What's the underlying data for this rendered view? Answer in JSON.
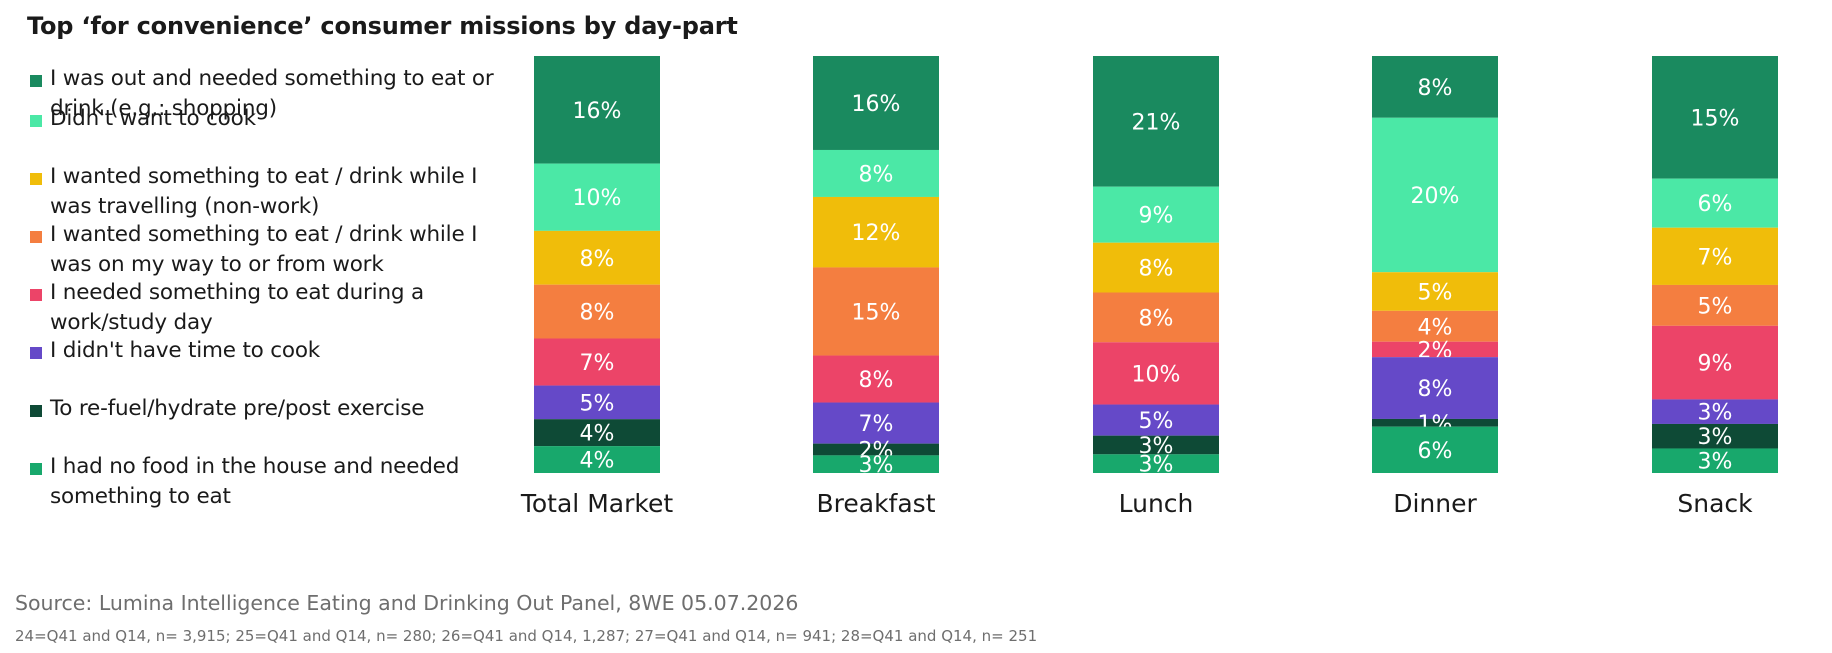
{
  "title": "Top ‘for convenience’ consumer missions by day-part",
  "source": "Source: Lumina Intelligence Eating and Drinking Out Panel, 8WE 05.07.2026",
  "note": "24=Q41 and Q14, n= 3,915; 25=Q41 and Q14, n= 280; 26=Q41 and Q14, 1,287; 27=Q41 and Q14, n= 941; 28=Q41 and Q14, n= 251",
  "legend": [
    {
      "label": "I was out and needed something to eat or drink (e.g.: shopping)",
      "color": "#1a8a5f"
    },
    {
      "label": "Didn't want to cook",
      "color": "#4be8a6"
    },
    {
      "label": "I wanted something to eat / drink while I was travelling (non-work)",
      "color": "#f0bd0a"
    },
    {
      "label": "I wanted something to eat / drink while I was on my way to or from work",
      "color": "#f47e40"
    },
    {
      "label": "I needed something to eat during a work/study day",
      "color": "#ec4468"
    },
    {
      "label": "I didn't have time to cook",
      "color": "#6549c8"
    },
    {
      "label": "To re-fuel/hydrate pre/post exercise",
      "color": "#0e4a36"
    },
    {
      "label": "I had no food in the house and needed something to eat",
      "color": "#18a86c"
    }
  ],
  "chart_data": {
    "type": "bar",
    "stacked": true,
    "categories": [
      "Total Market",
      "Breakfast",
      "Lunch",
      "Dinner",
      "Snack"
    ],
    "value_labels": [
      "16%",
      "10%",
      "8%",
      "8%",
      "7%",
      "5%",
      "4%",
      "4%",
      "16%",
      "8%",
      "12%",
      "15%",
      "8%",
      "7%",
      "2%",
      "3%",
      "21%",
      "9%",
      "8%",
      "8%",
      "10%",
      "5%",
      "3%",
      "3%",
      "8%",
      "20%",
      "5%",
      "4%",
      "2%",
      "8%",
      "1%",
      "6%",
      "15%",
      "6%",
      "7%",
      "5%",
      "9%",
      "3%",
      "3%",
      "3%"
    ],
    "series": [
      {
        "name": "I was out and needed something to eat or drink (e.g.: shopping)",
        "color": "#1a8a5f",
        "values": [
          16,
          16,
          21,
          8,
          15
        ]
      },
      {
        "name": "Didn't want to cook",
        "color": "#4be8a6",
        "values": [
          10,
          8,
          9,
          20,
          6
        ]
      },
      {
        "name": "I wanted something to eat / drink while I was travelling (non-work)",
        "color": "#f0bd0a",
        "values": [
          8,
          12,
          8,
          5,
          7
        ]
      },
      {
        "name": "I wanted something to eat / drink while I was on my way to or from work",
        "color": "#f47e40",
        "values": [
          8,
          15,
          8,
          4,
          5
        ]
      },
      {
        "name": "I needed something to eat during a work/study day",
        "color": "#ec4468",
        "values": [
          7,
          8,
          10,
          2,
          9
        ]
      },
      {
        "name": "I didn't have time to cook",
        "color": "#6549c8",
        "values": [
          5,
          7,
          5,
          8,
          3
        ]
      },
      {
        "name": "To re-fuel/hydrate pre/post exercise",
        "color": "#0e4a36",
        "values": [
          4,
          2,
          3,
          1,
          3
        ]
      },
      {
        "name": "I had no food in the house and needed something to eat",
        "color": "#18a86c",
        "values": [
          4,
          3,
          3,
          6,
          3
        ]
      }
    ],
    "legend_position": "left",
    "grid": false
  }
}
